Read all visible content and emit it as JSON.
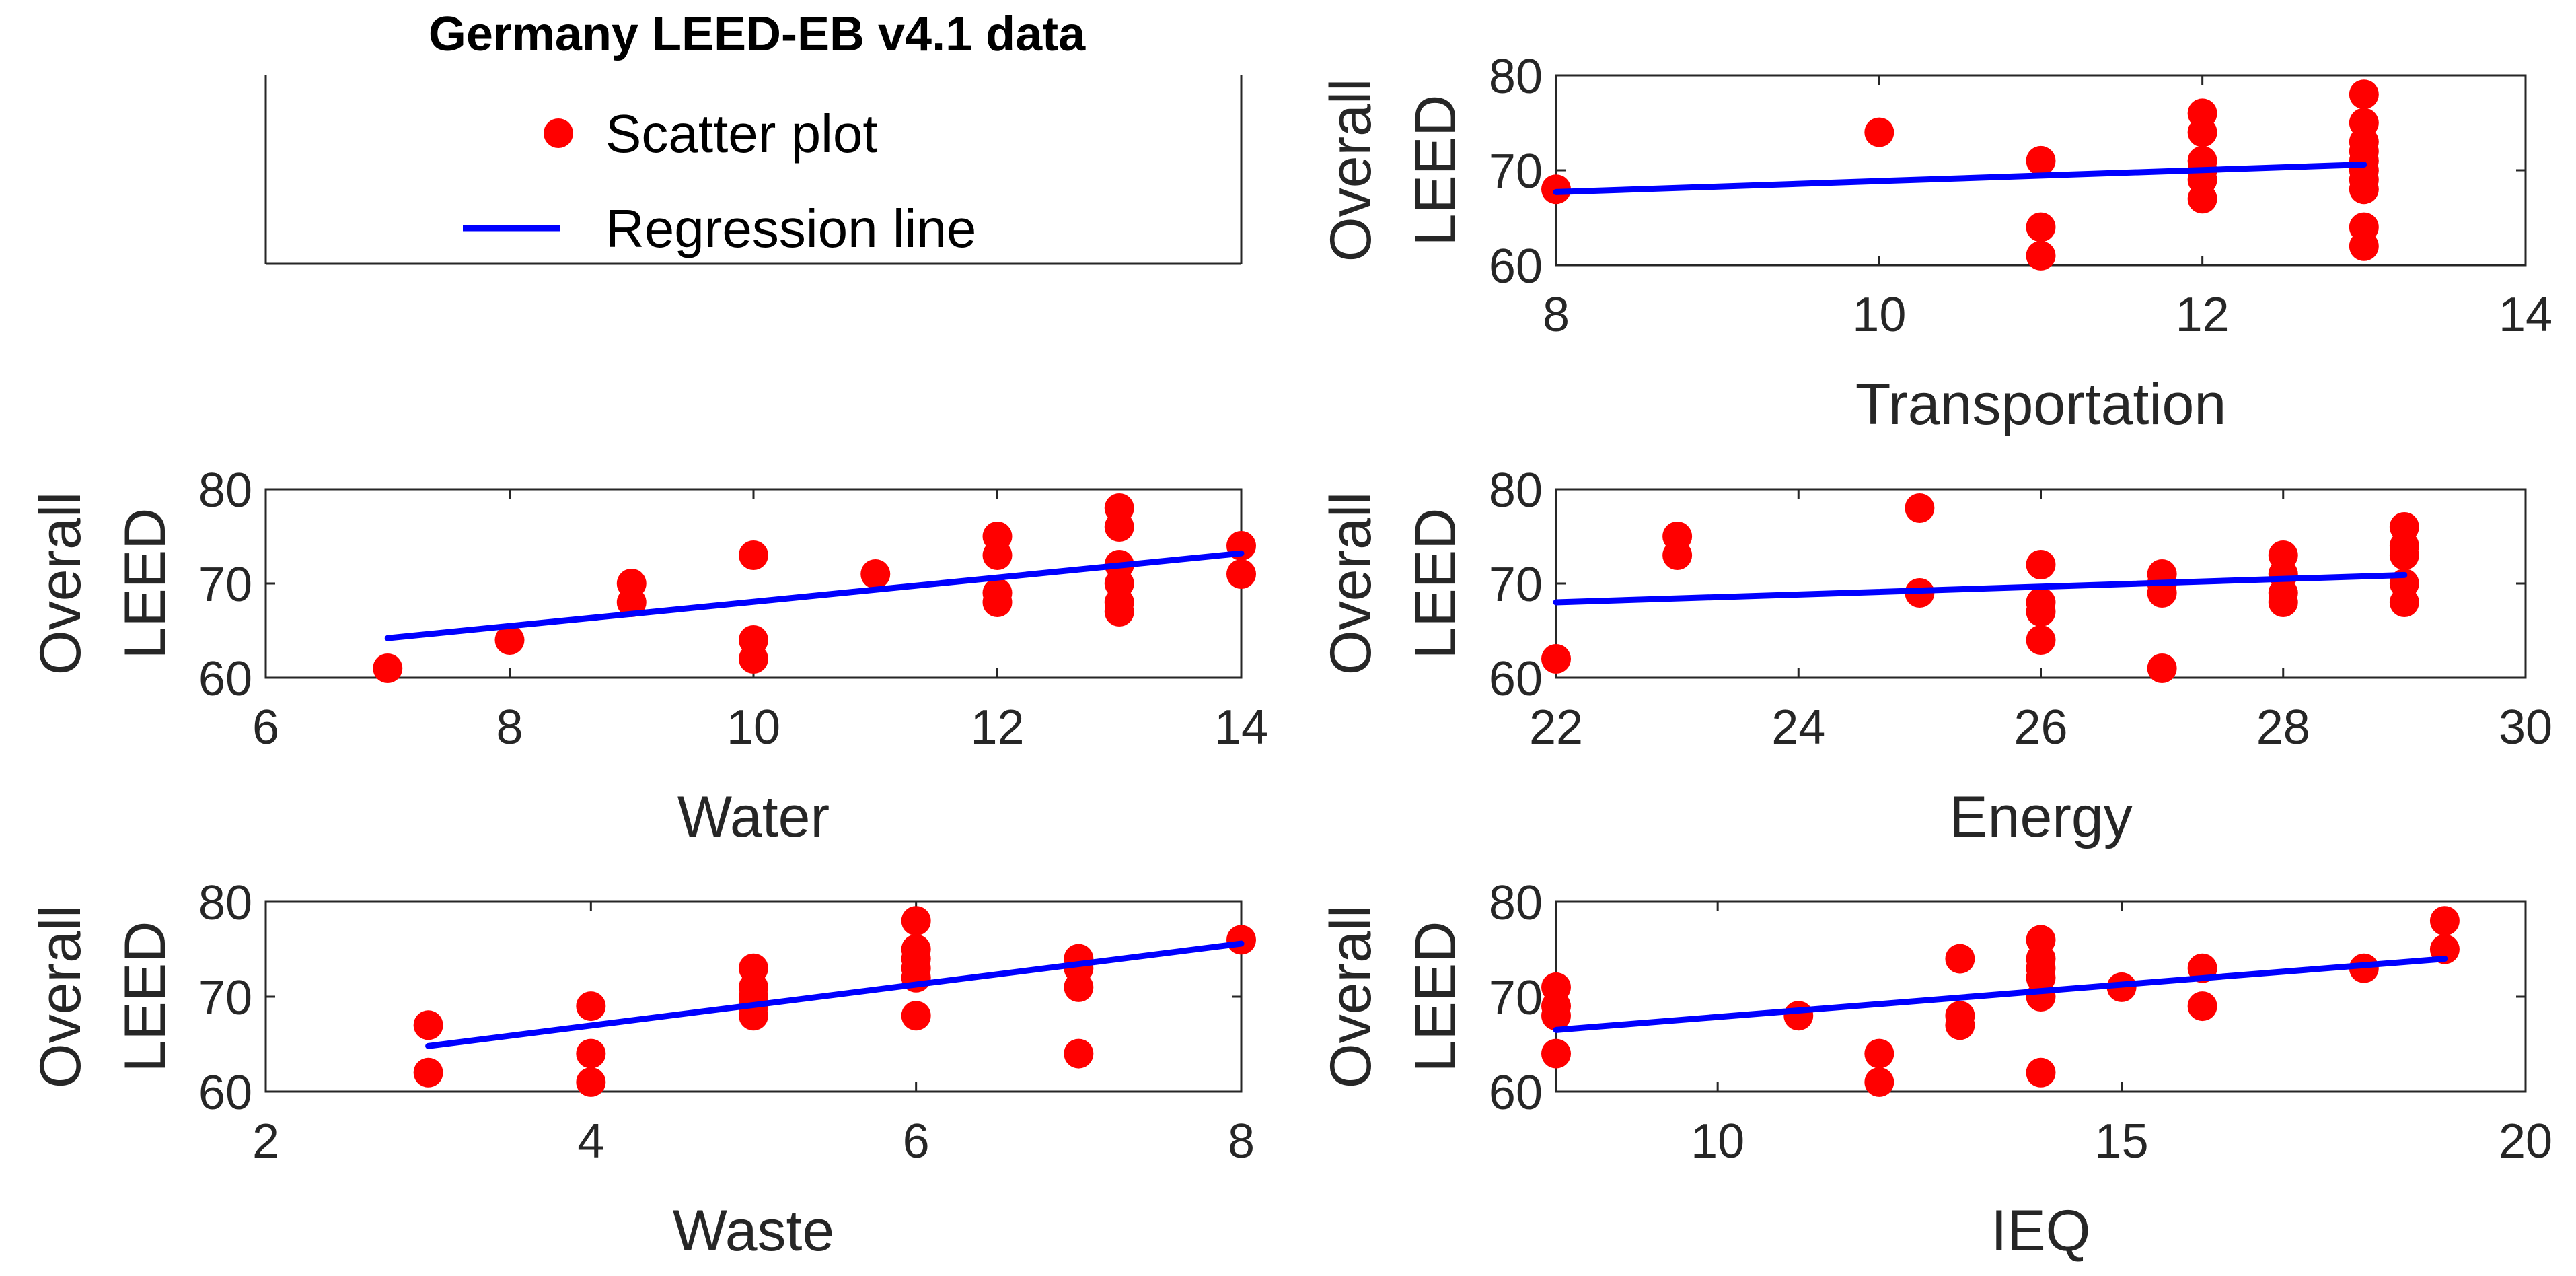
{
  "figure": {
    "title": "Germany LEED-EB v4.1 data",
    "legend": {
      "entries": [
        {
          "label": "Scatter plot",
          "marker": "circle",
          "color": "#ff0000"
        },
        {
          "label": "Regression line",
          "marker": "line",
          "color": "#0000ff"
        }
      ]
    }
  },
  "chart_data": [
    {
      "type": "scatter",
      "id": "transportation",
      "xlabel": "Transportation",
      "ylabel": [
        "Overall",
        "LEED"
      ],
      "xlim": [
        8,
        14
      ],
      "ylim": [
        60,
        80
      ],
      "xticks": [
        8,
        10,
        12,
        14
      ],
      "yticks": [
        60,
        70,
        80
      ],
      "points": [
        [
          8,
          68
        ],
        [
          10,
          74
        ],
        [
          11,
          71
        ],
        [
          11,
          64
        ],
        [
          11,
          61
        ],
        [
          12,
          76
        ],
        [
          12,
          74
        ],
        [
          12,
          71
        ],
        [
          12,
          70
        ],
        [
          12,
          69
        ],
        [
          12,
          67
        ],
        [
          13,
          78
        ],
        [
          13,
          75
        ],
        [
          13,
          73
        ],
        [
          13,
          72
        ],
        [
          13,
          71
        ],
        [
          13,
          70
        ],
        [
          13,
          69
        ],
        [
          13,
          68
        ],
        [
          13,
          64
        ],
        [
          13,
          62
        ]
      ],
      "regression": [
        [
          8,
          67.7
        ],
        [
          13,
          70.6
        ]
      ],
      "marker_color": "#ff0000",
      "line_color": "#0000ff"
    },
    {
      "type": "scatter",
      "id": "water",
      "xlabel": "Water",
      "ylabel": [
        "Overall",
        "LEED"
      ],
      "xlim": [
        6,
        14
      ],
      "ylim": [
        60,
        80
      ],
      "xticks": [
        6,
        8,
        10,
        12,
        14
      ],
      "yticks": [
        60,
        70,
        80
      ],
      "points": [
        [
          7,
          61
        ],
        [
          8,
          64
        ],
        [
          9,
          70
        ],
        [
          9,
          68
        ],
        [
          10,
          73
        ],
        [
          10,
          64
        ],
        [
          10,
          62
        ],
        [
          11,
          71
        ],
        [
          12,
          75
        ],
        [
          12,
          73
        ],
        [
          12,
          69
        ],
        [
          12,
          68
        ],
        [
          13,
          78
        ],
        [
          13,
          76
        ],
        [
          13,
          72
        ],
        [
          13,
          70
        ],
        [
          13,
          68
        ],
        [
          13,
          67
        ],
        [
          14,
          74
        ],
        [
          14,
          71
        ]
      ],
      "regression": [
        [
          7,
          64.2
        ],
        [
          14,
          73.2
        ]
      ],
      "marker_color": "#ff0000",
      "line_color": "#0000ff"
    },
    {
      "type": "scatter",
      "id": "energy",
      "xlabel": "Energy",
      "ylabel": [
        "Overall",
        "LEED"
      ],
      "xlim": [
        22,
        30
      ],
      "ylim": [
        60,
        80
      ],
      "xticks": [
        22,
        24,
        26,
        28,
        30
      ],
      "yticks": [
        60,
        70,
        80
      ],
      "points": [
        [
          22,
          62
        ],
        [
          23,
          75
        ],
        [
          23,
          73
        ],
        [
          25,
          78
        ],
        [
          25,
          69
        ],
        [
          26,
          72
        ],
        [
          26,
          68
        ],
        [
          26,
          67
        ],
        [
          26,
          64
        ],
        [
          27,
          71
        ],
        [
          27,
          70
        ],
        [
          27,
          69
        ],
        [
          27,
          61
        ],
        [
          28,
          73
        ],
        [
          28,
          71
        ],
        [
          28,
          69
        ],
        [
          28,
          68
        ],
        [
          29,
          76
        ],
        [
          29,
          74
        ],
        [
          29,
          73
        ],
        [
          29,
          70
        ],
        [
          29,
          68
        ]
      ],
      "regression": [
        [
          22,
          68
        ],
        [
          29,
          70.9
        ]
      ],
      "marker_color": "#ff0000",
      "line_color": "#0000ff"
    },
    {
      "type": "scatter",
      "id": "waste",
      "xlabel": "Waste",
      "ylabel": [
        "Overall",
        "LEED"
      ],
      "xlim": [
        2,
        8
      ],
      "ylim": [
        60,
        80
      ],
      "xticks": [
        2,
        4,
        6,
        8
      ],
      "yticks": [
        60,
        70,
        80
      ],
      "points": [
        [
          3,
          67
        ],
        [
          3,
          62
        ],
        [
          4,
          69
        ],
        [
          4,
          64
        ],
        [
          4,
          61
        ],
        [
          5,
          73
        ],
        [
          5,
          71
        ],
        [
          5,
          70
        ],
        [
          5,
          69
        ],
        [
          5,
          68
        ],
        [
          6,
          78
        ],
        [
          6,
          75
        ],
        [
          6,
          74
        ],
        [
          6,
          73
        ],
        [
          6,
          72
        ],
        [
          6,
          68
        ],
        [
          7,
          74
        ],
        [
          7,
          73
        ],
        [
          7,
          71
        ],
        [
          7,
          64
        ],
        [
          8,
          76
        ]
      ],
      "regression": [
        [
          3,
          64.8
        ],
        [
          8,
          75.6
        ]
      ],
      "marker_color": "#ff0000",
      "line_color": "#0000ff"
    },
    {
      "type": "scatter",
      "id": "ieq",
      "xlabel": "IEQ",
      "ylabel": [
        "Overall",
        "LEED"
      ],
      "xlim": [
        8,
        20
      ],
      "ylim": [
        60,
        80
      ],
      "xticks": [
        10,
        15,
        20
      ],
      "yticks": [
        60,
        70,
        80
      ],
      "points": [
        [
          8,
          71
        ],
        [
          8,
          69
        ],
        [
          8,
          68
        ],
        [
          8,
          64
        ],
        [
          11,
          68
        ],
        [
          12,
          64
        ],
        [
          12,
          61
        ],
        [
          13,
          74
        ],
        [
          13,
          68
        ],
        [
          13,
          67
        ],
        [
          14,
          76
        ],
        [
          14,
          74
        ],
        [
          14,
          73
        ],
        [
          14,
          72
        ],
        [
          14,
          70
        ],
        [
          14,
          62
        ],
        [
          15,
          71
        ],
        [
          16,
          73
        ],
        [
          16,
          69
        ],
        [
          18,
          73
        ],
        [
          19,
          78
        ],
        [
          19,
          75
        ]
      ],
      "regression": [
        [
          8,
          66.5
        ],
        [
          19,
          74
        ]
      ],
      "marker_color": "#ff0000",
      "line_color": "#0000ff"
    }
  ]
}
